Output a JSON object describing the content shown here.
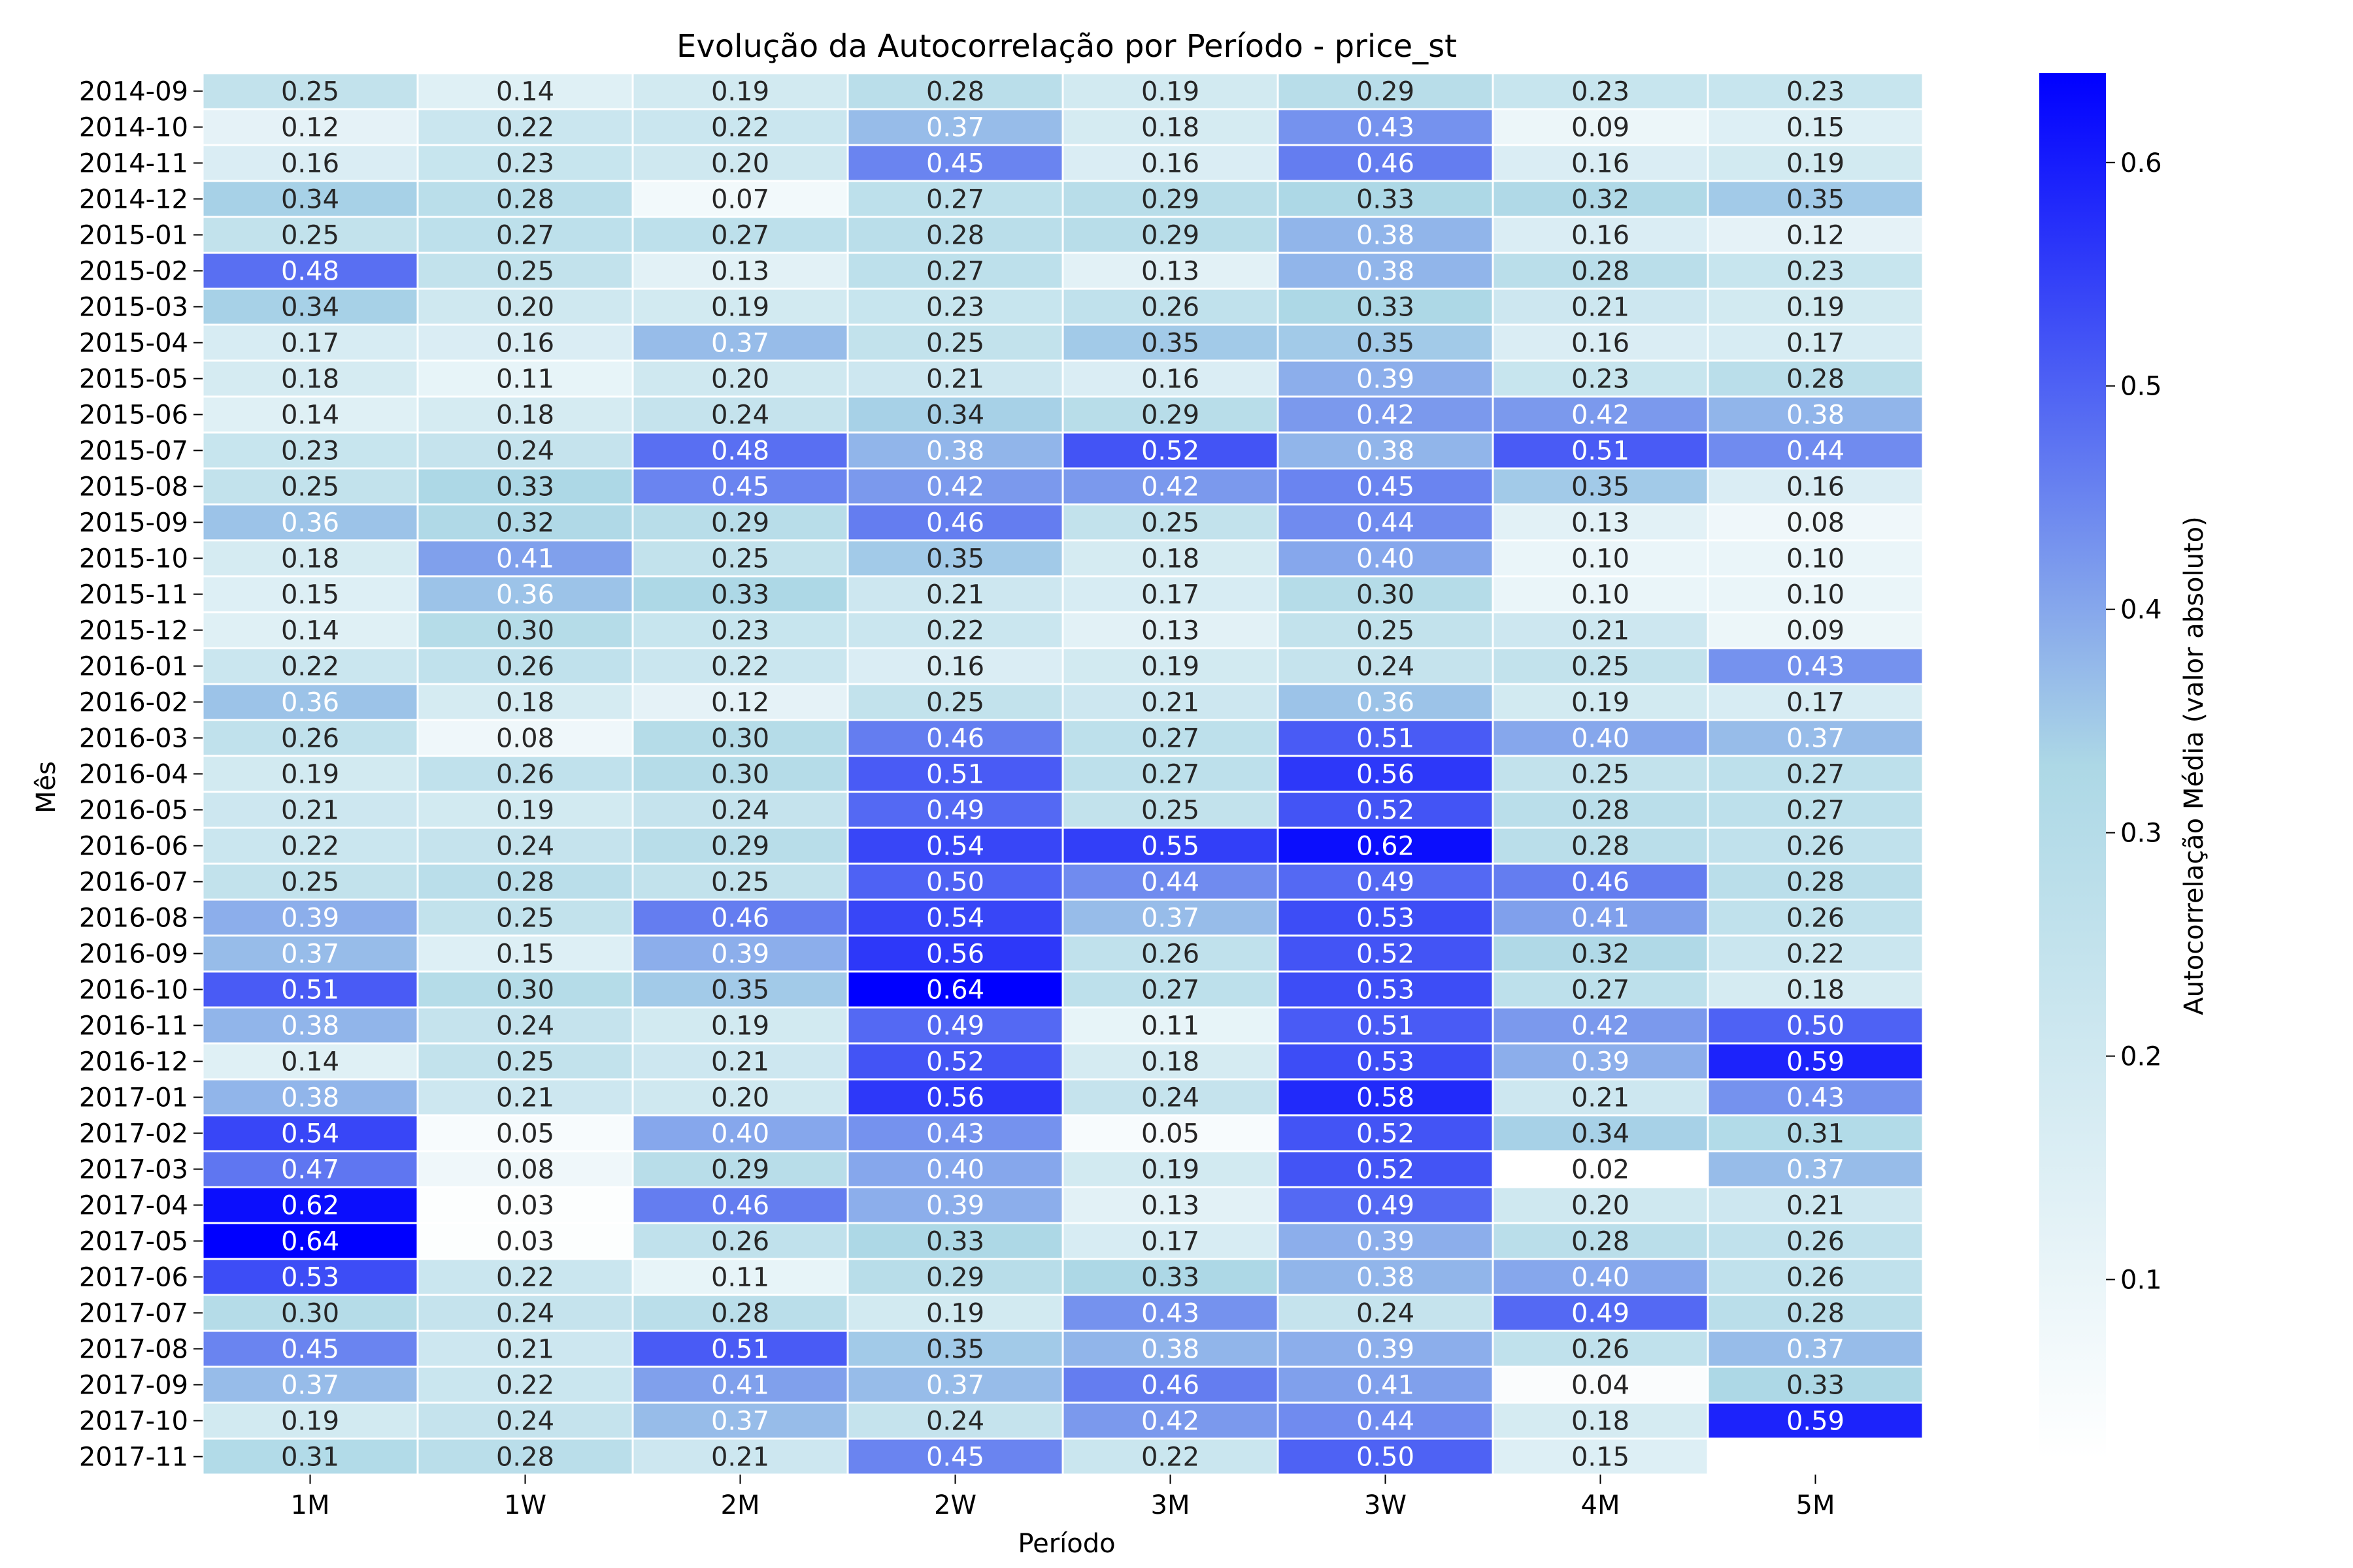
{
  "chart_data": {
    "type": "heatmap",
    "title": "Evolução da Autocorrelação por Período - price_st",
    "xlabel": "Período",
    "ylabel": "Mês",
    "colorbar_label": "Autocorrelação Média (valor absoluto)",
    "colorbar_ticks": [
      "0.1",
      "0.2",
      "0.3",
      "0.4",
      "0.5",
      "0.6"
    ],
    "colorbar_range": [
      0.02,
      0.64
    ],
    "colormap": [
      "#ffffff",
      "#add8e6",
      "#0000ff"
    ],
    "columns": [
      "1M",
      "1W",
      "2M",
      "2W",
      "3M",
      "3W",
      "4M",
      "5M"
    ],
    "rows": [
      "2014-09",
      "2014-10",
      "2014-11",
      "2014-12",
      "2015-01",
      "2015-02",
      "2015-03",
      "2015-04",
      "2015-05",
      "2015-06",
      "2015-07",
      "2015-08",
      "2015-09",
      "2015-10",
      "2015-11",
      "2015-12",
      "2016-01",
      "2016-02",
      "2016-03",
      "2016-04",
      "2016-05",
      "2016-06",
      "2016-07",
      "2016-08",
      "2016-09",
      "2016-10",
      "2016-11",
      "2016-12",
      "2017-01",
      "2017-02",
      "2017-03",
      "2017-04",
      "2017-05",
      "2017-06",
      "2017-07",
      "2017-08",
      "2017-09",
      "2017-10",
      "2017-11"
    ],
    "values": [
      [
        "0.25",
        "0.14",
        "0.19",
        "0.28",
        "0.19",
        "0.29",
        "0.23",
        "0.23"
      ],
      [
        "0.12",
        "0.22",
        "0.22",
        "0.37",
        "0.18",
        "0.43",
        "0.09",
        "0.15"
      ],
      [
        "0.16",
        "0.23",
        "0.20",
        "0.45",
        "0.16",
        "0.46",
        "0.16",
        "0.19"
      ],
      [
        "0.34",
        "0.28",
        "0.07",
        "0.27",
        "0.29",
        "0.33",
        "0.32",
        "0.35"
      ],
      [
        "0.25",
        "0.27",
        "0.27",
        "0.28",
        "0.29",
        "0.38",
        "0.16",
        "0.12"
      ],
      [
        "0.48",
        "0.25",
        "0.13",
        "0.27",
        "0.13",
        "0.38",
        "0.28",
        "0.23"
      ],
      [
        "0.34",
        "0.20",
        "0.19",
        "0.23",
        "0.26",
        "0.33",
        "0.21",
        "0.19"
      ],
      [
        "0.17",
        "0.16",
        "0.37",
        "0.25",
        "0.35",
        "0.35",
        "0.16",
        "0.17"
      ],
      [
        "0.18",
        "0.11",
        "0.20",
        "0.21",
        "0.16",
        "0.39",
        "0.23",
        "0.28"
      ],
      [
        "0.14",
        "0.18",
        "0.24",
        "0.34",
        "0.29",
        "0.42",
        "0.42",
        "0.38"
      ],
      [
        "0.23",
        "0.24",
        "0.48",
        "0.38",
        "0.52",
        "0.38",
        "0.51",
        "0.44"
      ],
      [
        "0.25",
        "0.33",
        "0.45",
        "0.42",
        "0.42",
        "0.45",
        "0.35",
        "0.16"
      ],
      [
        "0.36",
        "0.32",
        "0.29",
        "0.46",
        "0.25",
        "0.44",
        "0.13",
        "0.08"
      ],
      [
        "0.18",
        "0.41",
        "0.25",
        "0.35",
        "0.18",
        "0.40",
        "0.10",
        "0.10"
      ],
      [
        "0.15",
        "0.36",
        "0.33",
        "0.21",
        "0.17",
        "0.30",
        "0.10",
        "0.10"
      ],
      [
        "0.14",
        "0.30",
        "0.23",
        "0.22",
        "0.13",
        "0.25",
        "0.21",
        "0.09"
      ],
      [
        "0.22",
        "0.26",
        "0.22",
        "0.16",
        "0.19",
        "0.24",
        "0.25",
        "0.43"
      ],
      [
        "0.36",
        "0.18",
        "0.12",
        "0.25",
        "0.21",
        "0.36",
        "0.19",
        "0.17"
      ],
      [
        "0.26",
        "0.08",
        "0.30",
        "0.46",
        "0.27",
        "0.51",
        "0.40",
        "0.37"
      ],
      [
        "0.19",
        "0.26",
        "0.30",
        "0.51",
        "0.27",
        "0.56",
        "0.25",
        "0.27"
      ],
      [
        "0.21",
        "0.19",
        "0.24",
        "0.49",
        "0.25",
        "0.52",
        "0.28",
        "0.27"
      ],
      [
        "0.22",
        "0.24",
        "0.29",
        "0.54",
        "0.55",
        "0.62",
        "0.28",
        "0.26"
      ],
      [
        "0.25",
        "0.28",
        "0.25",
        "0.50",
        "0.44",
        "0.49",
        "0.46",
        "0.28"
      ],
      [
        "0.39",
        "0.25",
        "0.46",
        "0.54",
        "0.37",
        "0.53",
        "0.41",
        "0.26"
      ],
      [
        "0.37",
        "0.15",
        "0.39",
        "0.56",
        "0.26",
        "0.52",
        "0.32",
        "0.22"
      ],
      [
        "0.51",
        "0.30",
        "0.35",
        "0.64",
        "0.27",
        "0.53",
        "0.27",
        "0.18"
      ],
      [
        "0.38",
        "0.24",
        "0.19",
        "0.49",
        "0.11",
        "0.51",
        "0.42",
        "0.50"
      ],
      [
        "0.14",
        "0.25",
        "0.21",
        "0.52",
        "0.18",
        "0.53",
        "0.39",
        "0.59"
      ],
      [
        "0.38",
        "0.21",
        "0.20",
        "0.56",
        "0.24",
        "0.58",
        "0.21",
        "0.43"
      ],
      [
        "0.54",
        "0.05",
        "0.40",
        "0.43",
        "0.05",
        "0.52",
        "0.34",
        "0.31"
      ],
      [
        "0.47",
        "0.08",
        "0.29",
        "0.40",
        "0.19",
        "0.52",
        "0.02",
        "0.37"
      ],
      [
        "0.62",
        "0.03",
        "0.46",
        "0.39",
        "0.13",
        "0.49",
        "0.20",
        "0.21"
      ],
      [
        "0.64",
        "0.03",
        "0.26",
        "0.33",
        "0.17",
        "0.39",
        "0.28",
        "0.26"
      ],
      [
        "0.53",
        "0.22",
        "0.11",
        "0.29",
        "0.33",
        "0.38",
        "0.40",
        "0.26"
      ],
      [
        "0.30",
        "0.24",
        "0.28",
        "0.19",
        "0.43",
        "0.24",
        "0.49",
        "0.28"
      ],
      [
        "0.45",
        "0.21",
        "0.51",
        "0.35",
        "0.38",
        "0.39",
        "0.26",
        "0.37"
      ],
      [
        "0.37",
        "0.22",
        "0.41",
        "0.37",
        "0.46",
        "0.41",
        "0.04",
        "0.33"
      ],
      [
        "0.19",
        "0.24",
        "0.37",
        "0.24",
        "0.42",
        "0.44",
        "0.18",
        "0.59"
      ],
      [
        "0.31",
        "0.28",
        "0.21",
        "0.45",
        "0.22",
        "0.50",
        "0.15",
        ""
      ]
    ]
  }
}
